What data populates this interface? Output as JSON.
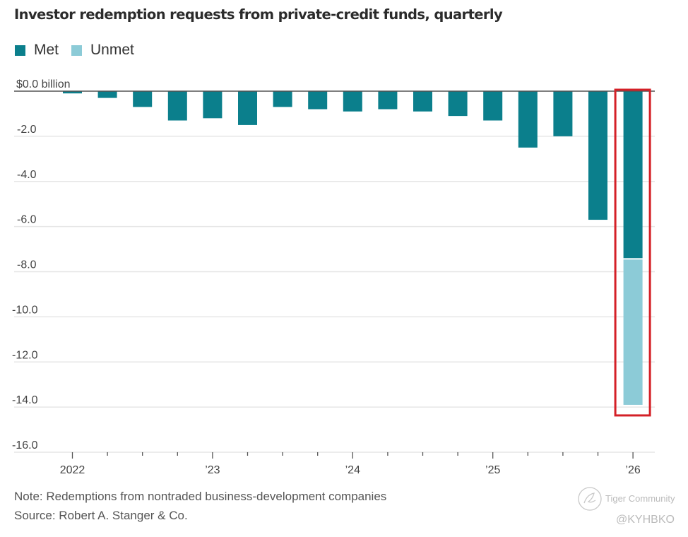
{
  "chart_data": {
    "type": "bar",
    "stacked": true,
    "title": "Investor redemption requests from private-credit funds, quarterly",
    "ylabel": "$ billion",
    "xlabel": "",
    "ylim": [
      -16.0,
      0.0
    ],
    "grid": true,
    "legend_position": "top-left",
    "y_ticks": [
      {
        "value": 0,
        "label": "$0.0 billion"
      },
      {
        "value": -2,
        "label": "-2.0"
      },
      {
        "value": -4,
        "label": "-4.0"
      },
      {
        "value": -6,
        "label": "-6.0"
      },
      {
        "value": -8,
        "label": "-8.0"
      },
      {
        "value": -10,
        "label": "-10.0"
      },
      {
        "value": -12,
        "label": "-12.0"
      },
      {
        "value": -14,
        "label": "-14.0"
      },
      {
        "value": -16,
        "label": "-16.0"
      }
    ],
    "categories": [
      "Q1 2022",
      "Q2 2022",
      "Q3 2022",
      "Q4 2022",
      "Q1 2023",
      "Q2 2023",
      "Q3 2023",
      "Q4 2023",
      "Q1 2024",
      "Q2 2024",
      "Q3 2024",
      "Q4 2024",
      "Q1 2025",
      "Q2 2025",
      "Q3 2025",
      "Q4 2025",
      "Q1 2026"
    ],
    "x_tick_labels": [
      {
        "index": 0,
        "label": "2022"
      },
      {
        "index": 4,
        "label": "’23"
      },
      {
        "index": 8,
        "label": "’24"
      },
      {
        "index": 12,
        "label": "’25"
      },
      {
        "index": 16,
        "label": "’26"
      }
    ],
    "series": [
      {
        "name": "Met",
        "color": "#0b7f8c",
        "values": [
          -0.1,
          -0.3,
          -0.7,
          -1.3,
          -1.2,
          -1.5,
          -0.7,
          -0.8,
          -0.9,
          -0.8,
          -0.9,
          -1.1,
          -1.3,
          -2.5,
          -2.0,
          -5.7,
          -7.4
        ]
      },
      {
        "name": "Unmet",
        "color": "#8ccbd7",
        "values": [
          0,
          0,
          0,
          0,
          0,
          0,
          0,
          0,
          0,
          0,
          0,
          0,
          0,
          0,
          0,
          0,
          -6.5
        ]
      }
    ],
    "annotations": [
      {
        "type": "highlight-box",
        "target_index": 16,
        "color": "#d42027"
      }
    ]
  },
  "footer": {
    "note": "Note: Redemptions from nontraded business-development companies",
    "source": "Source: Robert A. Stanger & Co."
  },
  "watermark": {
    "brand": "Tiger Community",
    "handle": "@KYHBKO"
  }
}
